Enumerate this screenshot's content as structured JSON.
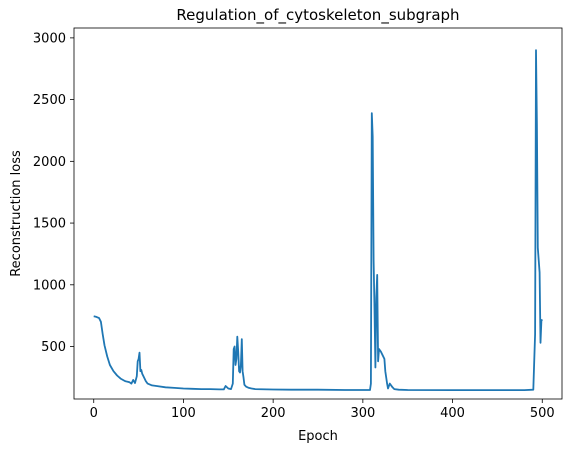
{
  "chart_data": {
    "type": "line",
    "title": "Regulation_of_cytoskeleton_subgraph",
    "xlabel": "Epoch",
    "ylabel": "Reconstruction loss",
    "xlim": [
      -22,
      522
    ],
    "ylim": [
      75,
      3080
    ],
    "xticks": [
      0,
      100,
      200,
      300,
      400,
      500
    ],
    "yticks": [
      500,
      1000,
      1500,
      2000,
      2500,
      3000
    ],
    "grid": false,
    "series": [
      {
        "color": "#1f77b4",
        "x": [
          0,
          3,
          6,
          8,
          10,
          12,
          15,
          18,
          22,
          26,
          30,
          35,
          40,
          42,
          44,
          46,
          48,
          49,
          50,
          51,
          52,
          53,
          54,
          56,
          58,
          60,
          65,
          70,
          80,
          90,
          100,
          110,
          120,
          130,
          140,
          145,
          147,
          150,
          153,
          155,
          156,
          157,
          158,
          159,
          160,
          161,
          162,
          163,
          164,
          165,
          166,
          167,
          168,
          170,
          173,
          176,
          180,
          200,
          220,
          250,
          280,
          300,
          308,
          309,
          310,
          311,
          312,
          313,
          314,
          315,
          316,
          317,
          318,
          320,
          322,
          324,
          325,
          327,
          328,
          330,
          333,
          335,
          340,
          350,
          400,
          450,
          480,
          490,
          492,
          493,
          494,
          495,
          496,
          497,
          498,
          499,
          500
        ],
        "y": [
          745,
          740,
          730,
          700,
          600,
          510,
          420,
          350,
          300,
          265,
          240,
          220,
          210,
          200,
          230,
          205,
          260,
          380,
          400,
          450,
          300,
          310,
          280,
          250,
          220,
          200,
          185,
          180,
          170,
          165,
          160,
          158,
          155,
          155,
          153,
          153,
          180,
          160,
          155,
          200,
          480,
          500,
          350,
          400,
          580,
          460,
          300,
          290,
          350,
          560,
          300,
          250,
          190,
          175,
          165,
          160,
          155,
          152,
          150,
          150,
          148,
          148,
          148,
          200,
          2390,
          2200,
          1200,
          800,
          330,
          900,
          1080,
          380,
          480,
          460,
          430,
          400,
          300,
          200,
          160,
          200,
          170,
          155,
          150,
          148,
          147,
          147,
          147,
          150,
          600,
          2900,
          2300,
          1300,
          1200,
          1100,
          530,
          710,
          720
        ]
      }
    ]
  }
}
